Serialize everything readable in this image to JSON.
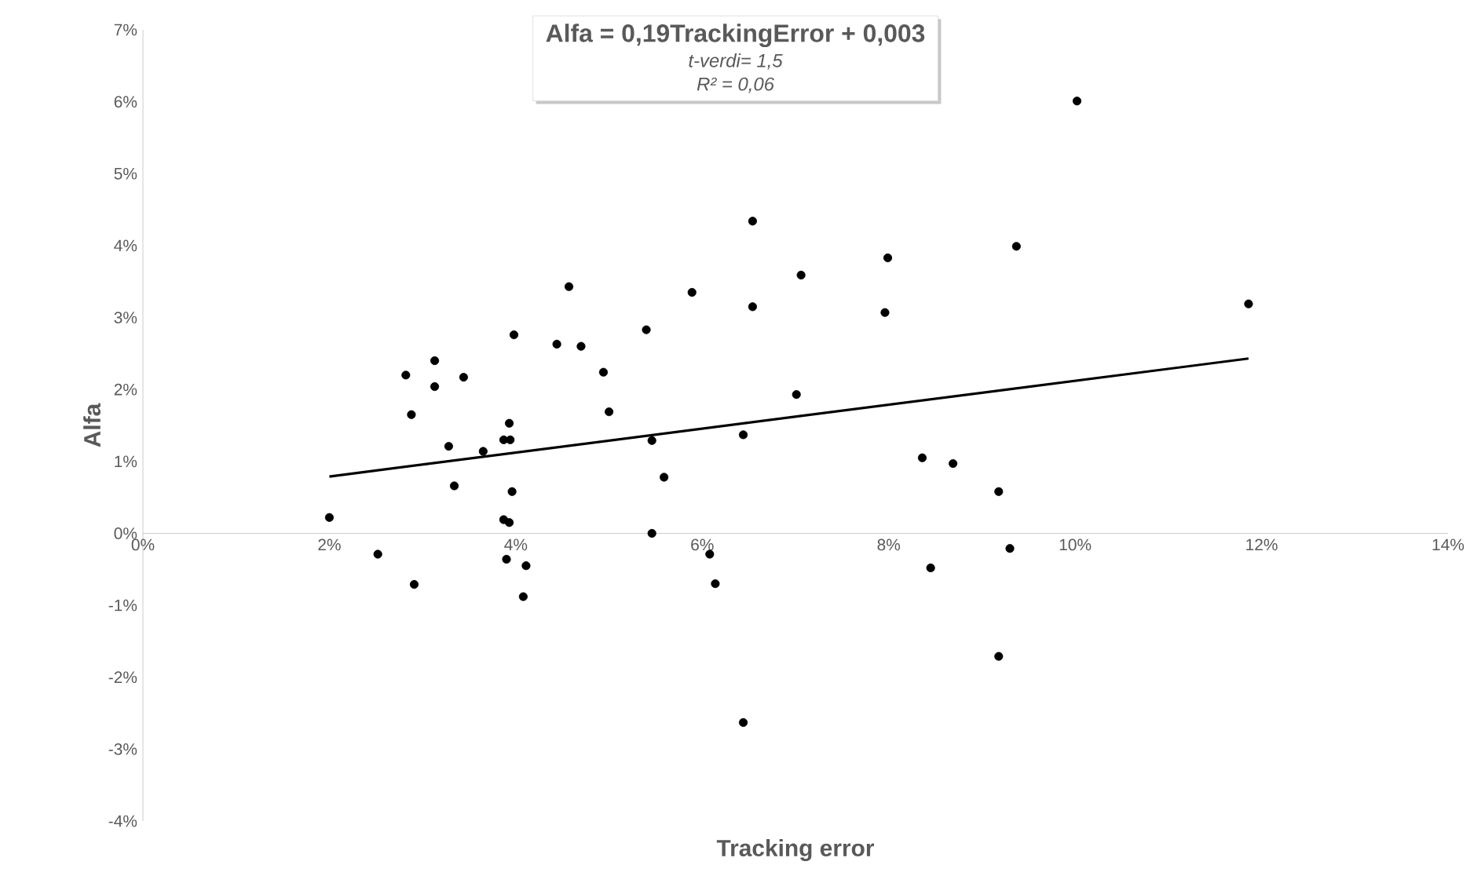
{
  "chart_data": {
    "type": "scatter",
    "xlabel": "Tracking error",
    "ylabel": "Alfa",
    "annotations": [
      "Alfa = 0,19TrackingError + 0,003",
      "t-verdi= 1,5",
      "R² = 0,06"
    ],
    "xlim": [
      0,
      14
    ],
    "ylim": [
      -4,
      7
    ],
    "xticks": [
      {
        "value": 0,
        "label": "0%"
      },
      {
        "value": 2,
        "label": "2%"
      },
      {
        "value": 4,
        "label": "4%"
      },
      {
        "value": 6,
        "label": "6%"
      },
      {
        "value": 8,
        "label": "8%"
      },
      {
        "value": 10,
        "label": "10%"
      },
      {
        "value": 12,
        "label": "12%"
      },
      {
        "value": 14,
        "label": "14%"
      }
    ],
    "yticks": [
      {
        "value": -4,
        "label": "-4%"
      },
      {
        "value": -3,
        "label": "-3%"
      },
      {
        "value": -2,
        "label": "-2%"
      },
      {
        "value": -1,
        "label": "-1%"
      },
      {
        "value": 0,
        "label": "0%"
      },
      {
        "value": 1,
        "label": "1%"
      },
      {
        "value": 2,
        "label": "2%"
      },
      {
        "value": 3,
        "label": "3%"
      },
      {
        "value": 4,
        "label": "4%"
      },
      {
        "value": 5,
        "label": "5%"
      },
      {
        "value": 6,
        "label": "6%"
      },
      {
        "value": 7,
        "label": "7%"
      }
    ],
    "marker": "circle",
    "grid": false,
    "series": [
      {
        "color": "#000000",
        "x": [
          2.0,
          2.52,
          2.91,
          2.82,
          3.13,
          3.13,
          2.88,
          3.44,
          3.28,
          3.34,
          3.65,
          3.93,
          3.87,
          3.94,
          3.96,
          3.87,
          3.93,
          3.9,
          4.11,
          4.08,
          3.98,
          4.57,
          4.44,
          4.7,
          4.94,
          5.0,
          5.4,
          5.46,
          5.59,
          5.46,
          5.89,
          6.54,
          6.54,
          6.08,
          6.14,
          6.44,
          6.44,
          7.06,
          7.01,
          7.99,
          7.96,
          8.36,
          8.45,
          8.69,
          9.18,
          9.3,
          9.18,
          9.37,
          10.02,
          11.86
        ],
        "values": [
          0.22,
          -0.29,
          -0.71,
          2.2,
          2.4,
          2.04,
          1.65,
          2.17,
          1.21,
          0.66,
          1.14,
          1.53,
          1.3,
          1.3,
          0.58,
          0.19,
          0.15,
          -0.36,
          -0.45,
          -0.88,
          2.76,
          3.43,
          2.63,
          2.6,
          2.24,
          1.69,
          2.83,
          1.29,
          0.78,
          0.0,
          3.35,
          4.34,
          3.15,
          -0.29,
          -0.7,
          1.37,
          -2.63,
          3.59,
          1.93,
          3.83,
          3.07,
          1.05,
          -0.48,
          0.97,
          0.58,
          -0.21,
          -1.71,
          3.99,
          6.01,
          3.19
        ]
      },
      {
        "type": "line",
        "color": "#000000",
        "marker": "none",
        "line_style": "solid",
        "x": [
          2.0,
          11.86
        ],
        "values": [
          0.79,
          2.43
        ]
      }
    ]
  }
}
